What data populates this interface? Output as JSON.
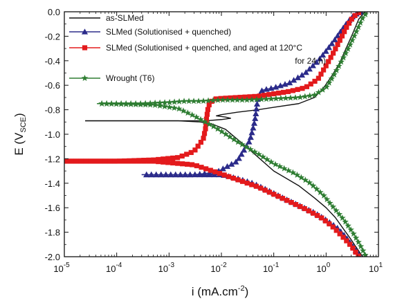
{
  "chart_data": {
    "type": "line",
    "title": "",
    "xlabel": "i (mA.cm⁻²)",
    "xlabel_parts": [
      "i (mA.cm",
      "-2",
      ")"
    ],
    "ylabel": "E (VSCE)",
    "ylabel_parts": [
      "E (V",
      "SCE",
      ")"
    ],
    "x_scale": "log",
    "xlim": [
      1e-05,
      10
    ],
    "ylim": [
      -2.0,
      0.0
    ],
    "x_ticks": [
      {
        "base": "10",
        "exp": "-5",
        "value": 1e-05
      },
      {
        "base": "10",
        "exp": "-4",
        "value": 0.0001
      },
      {
        "base": "10",
        "exp": "-3",
        "value": 0.001
      },
      {
        "base": "10",
        "exp": "-2",
        "value": 0.01
      },
      {
        "base": "10",
        "exp": "-1",
        "value": 0.1
      },
      {
        "base": "10",
        "exp": "0",
        "value": 1
      },
      {
        "base": "10",
        "exp": "1",
        "value": 10
      }
    ],
    "y_ticks": [
      "0.0",
      "-0.2",
      "-0.4",
      "-0.6",
      "-0.8",
      "-1.0",
      "-1.2",
      "-1.4",
      "-1.6",
      "-1.8",
      "-2.0"
    ],
    "grid": false,
    "legend_position": "top-left",
    "series": [
      {
        "name": "as-SLMed",
        "legend_lines": [
          "as-SLMed"
        ],
        "color": "#111111",
        "marker": "none",
        "x": [
          2.5e-05,
          0.0003,
          0.0015,
          0.005,
          0.01,
          0.015,
          0.012,
          0.008,
          0.01,
          0.02,
          0.05,
          0.1,
          0.3,
          0.6,
          0.9,
          1.3,
          1.8,
          2.4,
          3.2,
          4.2,
          5.5
        ],
        "y": [
          -0.89,
          -0.89,
          -0.89,
          -0.89,
          -0.88,
          -0.87,
          -0.86,
          -0.85,
          -0.84,
          -0.82,
          -0.8,
          -0.78,
          -0.75,
          -0.7,
          -0.62,
          -0.52,
          -0.42,
          -0.3,
          -0.18,
          -0.06,
          0.0
        ]
      },
      {
        "name": "as-SLMed cathodic",
        "legend_lines": [],
        "color": "#111111",
        "marker": "none",
        "x": [
          2.5e-05,
          0.0003,
          0.0015,
          0.004,
          0.007,
          0.012,
          0.02,
          0.04,
          0.1,
          0.3,
          0.6,
          1.0,
          1.5,
          2.2,
          3.0,
          4.0,
          5.0
        ],
        "y": [
          -0.89,
          -0.89,
          -0.89,
          -0.9,
          -0.92,
          -0.96,
          -1.04,
          -1.15,
          -1.3,
          -1.42,
          -1.52,
          -1.6,
          -1.68,
          -1.78,
          -1.86,
          -1.94,
          -2.0
        ]
      },
      {
        "name": "SLMed (Solutionised + quenched)",
        "legend_lines": [
          "SLMed (Solutionised + quenched)"
        ],
        "color": "#2b2b8a",
        "marker": "triangle",
        "x": [
          0.0003,
          0.001,
          0.003,
          0.008,
          0.02,
          0.035,
          0.042,
          0.045,
          0.047,
          0.05,
          0.06,
          0.1,
          0.2,
          0.4,
          0.7,
          1.0,
          1.4,
          1.9,
          2.5,
          3.2,
          4.0,
          5.0
        ],
        "y": [
          -1.33,
          -1.33,
          -1.33,
          -1.31,
          -1.22,
          -1.05,
          -0.92,
          -0.85,
          -0.78,
          -0.7,
          -0.64,
          -0.62,
          -0.58,
          -0.5,
          -0.4,
          -0.32,
          -0.24,
          -0.16,
          -0.09,
          -0.04,
          -0.01,
          0.0
        ]
      },
      {
        "name": "SLMed (Solutionised + quenched) cathodic",
        "legend_lines": [],
        "color": "#2b2b8a",
        "marker": "triangle",
        "x": [
          0.0003,
          0.003,
          0.01,
          0.02,
          0.04,
          0.08,
          0.15,
          0.3,
          0.6,
          1.0,
          1.6,
          2.4,
          3.3,
          4.5
        ],
        "y": [
          -1.33,
          -1.33,
          -1.33,
          -1.36,
          -1.4,
          -1.46,
          -1.52,
          -1.58,
          -1.64,
          -1.7,
          -1.76,
          -1.84,
          -1.92,
          -2.0
        ]
      },
      {
        "name": "SLMed (Solutionised + quenched, and aged at 120°C for 24 h)",
        "legend_lines": [
          "SLMed (Solutionised + quenched, and aged at 120°C",
          "for 24 h)"
        ],
        "color": "#e31a1c",
        "marker": "square",
        "x": [
          8.8e-06,
          0.0001,
          0.0005,
          0.0015,
          0.003,
          0.0045,
          0.005,
          0.0052,
          0.0055,
          0.006,
          0.008,
          0.02,
          0.05,
          0.1,
          0.2,
          0.4,
          0.7,
          1.0,
          1.4,
          1.9,
          2.5,
          3.2,
          4.0,
          4.8
        ],
        "y": [
          -1.22,
          -1.22,
          -1.21,
          -1.19,
          -1.14,
          -1.04,
          -0.95,
          -0.87,
          -0.8,
          -0.74,
          -0.71,
          -0.7,
          -0.69,
          -0.67,
          -0.65,
          -0.62,
          -0.55,
          -0.44,
          -0.33,
          -0.22,
          -0.12,
          -0.05,
          -0.01,
          0.0
        ]
      },
      {
        "name": "SLMed (Solutionised + quenched, and aged at 120°C for 24 h) cathodic",
        "legend_lines": [],
        "color": "#e31a1c",
        "marker": "square",
        "x": [
          8.8e-06,
          0.0005,
          0.003,
          0.008,
          0.02,
          0.05,
          0.1,
          0.2,
          0.4,
          0.8,
          1.3,
          2.0,
          3.0,
          4.2
        ],
        "y": [
          -1.22,
          -1.22,
          -1.25,
          -1.31,
          -1.37,
          -1.43,
          -1.49,
          -1.55,
          -1.61,
          -1.68,
          -1.75,
          -1.83,
          -1.91,
          -2.0
        ]
      },
      {
        "name": "Wrought (T6)",
        "legend_lines": [
          "Wrought (T6)"
        ],
        "color": "#2e7d32",
        "marker": "star",
        "x": [
          4.2e-05,
          0.0003,
          0.001,
          0.002,
          0.004,
          0.01,
          0.03,
          0.1,
          0.3,
          0.6,
          1.0,
          1.4,
          2.0,
          2.8,
          3.8,
          5.0,
          6.2
        ],
        "y": [
          -0.75,
          -0.75,
          -0.74,
          -0.73,
          -0.73,
          -0.72,
          -0.72,
          -0.71,
          -0.7,
          -0.68,
          -0.62,
          -0.52,
          -0.4,
          -0.28,
          -0.16,
          -0.05,
          0.0
        ]
      },
      {
        "name": "Wrought (T6) cathodic",
        "legend_lines": [],
        "color": "#2e7d32",
        "marker": "star",
        "x": [
          4.2e-05,
          0.0005,
          0.0015,
          0.003,
          0.008,
          0.02,
          0.05,
          0.1,
          0.25,
          0.5,
          0.9,
          1.4,
          2.2,
          3.2,
          4.4,
          5.8
        ],
        "y": [
          -0.75,
          -0.76,
          -0.79,
          -0.85,
          -0.95,
          -1.06,
          -1.16,
          -1.24,
          -1.32,
          -1.4,
          -1.5,
          -1.6,
          -1.7,
          -1.8,
          -1.9,
          -2.0
        ]
      }
    ]
  }
}
